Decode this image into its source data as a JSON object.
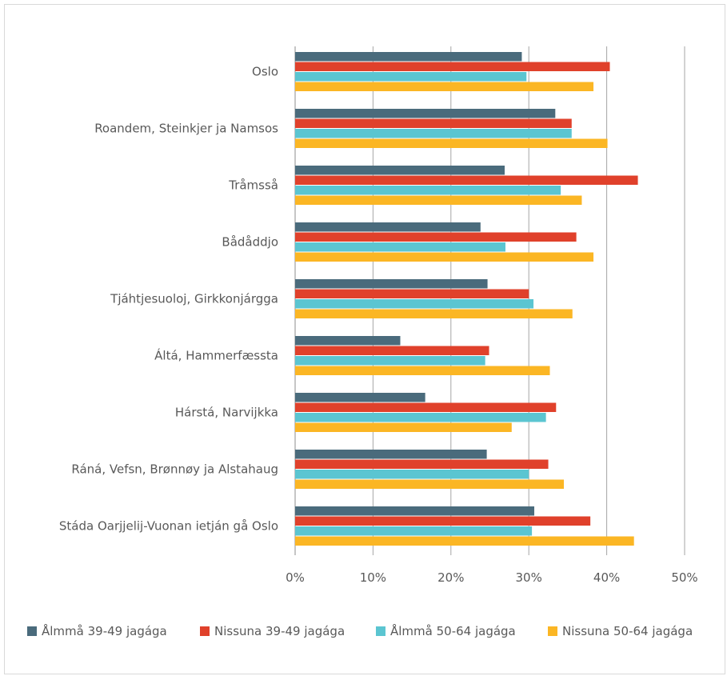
{
  "chart_data": {
    "type": "bar",
    "orientation": "horizontal",
    "title": "",
    "xlabel": "",
    "ylabel": "",
    "xlim": [
      0,
      50
    ],
    "x_ticks": [
      "0%",
      "10%",
      "20%",
      "30%",
      "40%",
      "50%"
    ],
    "grid": "vertical",
    "legend_position": "bottom",
    "categories": [
      "Oslo",
      "Roandem, Steinkjer ja Namsos",
      "Tråmsså",
      "Bådåddjo",
      "Tjáhtjesuoloj, Girkkonjárgga",
      "Áltá, Hammerfæssta",
      "Hárstá, Narvijkka",
      "Ráná, Vefsn, Brønnøy ja Alstahaug",
      "Stáda Oarjjelij-Vuonan ietján gå Oslo"
    ],
    "series": [
      {
        "name": "Ålmmå 39-49 jagága",
        "color": "#4a6b7c",
        "values": [
          29.1,
          33.4,
          26.9,
          23.8,
          24.7,
          13.5,
          16.7,
          24.6,
          30.7
        ]
      },
      {
        "name": "Nissuna 39-49 jagága",
        "color": "#e0412b",
        "values": [
          40.4,
          35.5,
          44.0,
          36.1,
          30.0,
          24.9,
          33.5,
          32.5,
          37.9
        ]
      },
      {
        "name": "Ålmmå 50-64 jagága",
        "color": "#5bc5d1",
        "values": [
          29.7,
          35.5,
          34.1,
          27.0,
          30.6,
          24.4,
          32.2,
          30.0,
          30.4
        ]
      },
      {
        "name": "Nissuna 50-64 jagága",
        "color": "#fbb624",
        "values": [
          38.3,
          40.1,
          36.8,
          38.3,
          35.6,
          32.7,
          27.8,
          34.5,
          43.5
        ]
      }
    ]
  }
}
